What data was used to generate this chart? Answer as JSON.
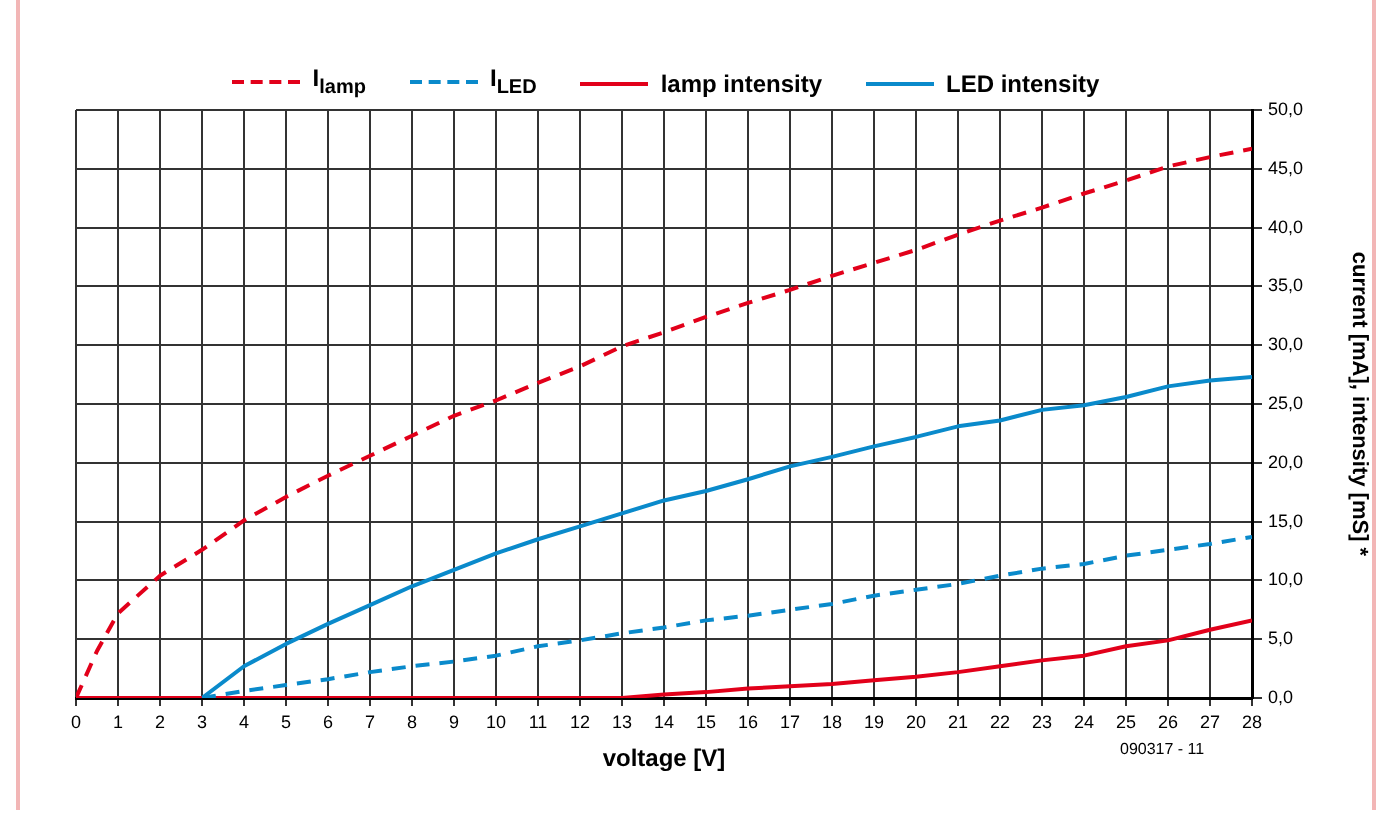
{
  "chart_data": {
    "type": "line",
    "xlabel": "voltage [V]",
    "ylabel": "current [mA], intensity [mS] *",
    "annotations": [
      "090317 - 11"
    ],
    "xlim": [
      0,
      28
    ],
    "xticks": [
      0,
      1,
      2,
      3,
      4,
      5,
      6,
      7,
      8,
      9,
      10,
      11,
      12,
      13,
      14,
      15,
      16,
      17,
      18,
      19,
      20,
      21,
      22,
      23,
      24,
      25,
      26,
      27,
      28
    ],
    "ylim": [
      0,
      50
    ],
    "yticks": [
      {
        "value": 0,
        "label": "0,0"
      },
      {
        "value": 5,
        "label": "5,0"
      },
      {
        "value": 10,
        "label": "10,0"
      },
      {
        "value": 15,
        "label": "15,0"
      },
      {
        "value": 20,
        "label": "20,0"
      },
      {
        "value": 25,
        "label": "25,0"
      },
      {
        "value": 30,
        "label": "30,0"
      },
      {
        "value": 35,
        "label": "35,0"
      },
      {
        "value": 40,
        "label": "40,0"
      },
      {
        "value": 45,
        "label": "45,0"
      },
      {
        "value": 50,
        "label": "50,0"
      }
    ],
    "grid": true,
    "legend": "top",
    "marker": "none",
    "series": [
      {
        "name": "I$_{lamp}$",
        "color": "#e2001a",
        "line_style": "dashed",
        "x": [
          0,
          0.5,
          1,
          2,
          3,
          4,
          5,
          6,
          7,
          8,
          9,
          10,
          11,
          12,
          13,
          14,
          15,
          16,
          17,
          18,
          19,
          20,
          21,
          22,
          23,
          24,
          25,
          26,
          27,
          28
        ],
        "values": [
          0,
          4,
          7.2,
          10.4,
          12.6,
          15.1,
          17.1,
          18.9,
          20.6,
          22.3,
          24,
          25.3,
          26.8,
          28.2,
          29.9,
          31.1,
          32.4,
          33.6,
          34.7,
          35.9,
          37,
          38.1,
          39.4,
          40.6,
          41.7,
          42.9,
          44,
          45.2,
          46,
          46.7
        ]
      },
      {
        "name": "I$_{LED}$",
        "color": "#0a8acb",
        "line_style": "dashed",
        "x": [
          3,
          4,
          5,
          6,
          7,
          8,
          9,
          10,
          11,
          12,
          13,
          14,
          15,
          16,
          17,
          18,
          19,
          20,
          21,
          22,
          23,
          24,
          25,
          26,
          27,
          28
        ],
        "values": [
          0,
          0.6,
          1.1,
          1.6,
          2.2,
          2.7,
          3.1,
          3.6,
          4.4,
          4.9,
          5.5,
          6,
          6.6,
          7,
          7.5,
          8,
          8.7,
          9.2,
          9.7,
          10.4,
          11,
          11.4,
          12.1,
          12.6,
          13.1,
          13.7
        ]
      },
      {
        "name": "lamp intensity",
        "color": "#e2001a",
        "line_style": "solid",
        "x": [
          0,
          13,
          14,
          15,
          16,
          17,
          18,
          19,
          20,
          21,
          22,
          23,
          24,
          25,
          26,
          27,
          28
        ],
        "values": [
          0,
          0,
          0.3,
          0.5,
          0.8,
          1,
          1.2,
          1.5,
          1.8,
          2.2,
          2.7,
          3.2,
          3.6,
          4.4,
          4.9,
          5.8,
          6.6
        ]
      },
      {
        "name": "LED intensity",
        "color": "#0a8acb",
        "line_style": "solid",
        "x": [
          0,
          3,
          4,
          5,
          6,
          7,
          8,
          9,
          10,
          11,
          12,
          13,
          14,
          15,
          16,
          17,
          18,
          19,
          20,
          21,
          22,
          23,
          24,
          25,
          26,
          27,
          28
        ],
        "values": [
          0,
          0,
          2.7,
          4.6,
          6.3,
          7.9,
          9.5,
          10.9,
          12.3,
          13.5,
          14.6,
          15.7,
          16.8,
          17.6,
          18.6,
          19.7,
          20.5,
          21.4,
          22.2,
          23.1,
          23.6,
          24.5,
          24.9,
          25.6,
          26.5,
          27,
          27.3
        ]
      }
    ]
  }
}
